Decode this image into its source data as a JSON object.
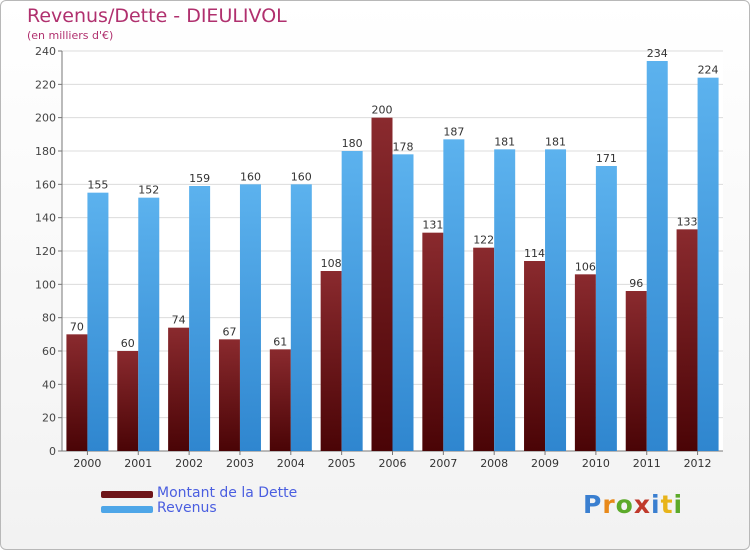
{
  "chart_data": {
    "type": "bar",
    "title": "Revenus/Dette - DIEULIVOL",
    "subtitle": "(en milliers d'€)",
    "categories": [
      "2000",
      "2001",
      "2002",
      "2003",
      "2004",
      "2005",
      "2006",
      "2007",
      "2008",
      "2009",
      "2010",
      "2011",
      "2012"
    ],
    "series": [
      {
        "name": "Montant de la Dette",
        "values": [
          70,
          60,
          74,
          67,
          61,
          108,
          200,
          131,
          122,
          114,
          106,
          96,
          133
        ],
        "color": "#6e1418"
      },
      {
        "name": "Revenus",
        "values": [
          155,
          152,
          159,
          160,
          160,
          180,
          178,
          187,
          181,
          181,
          171,
          234,
          224
        ],
        "color": "#4ea6e8"
      }
    ],
    "ylim": [
      0,
      240
    ],
    "yticks": [
      0,
      20,
      40,
      60,
      80,
      100,
      120,
      140,
      160,
      180,
      200,
      220,
      240
    ],
    "grid": true,
    "legend_position": "bottom-left"
  },
  "logo": {
    "letters": [
      {
        "char": "P",
        "color": "#3a7fd0"
      },
      {
        "char": "r",
        "color": "#e8891a"
      },
      {
        "char": "o",
        "color": "#5caa2a"
      },
      {
        "char": "x",
        "color": "#c0392b"
      },
      {
        "char": "i",
        "color": "#3a7fd0"
      },
      {
        "char": "t",
        "color": "#e8b41a"
      },
      {
        "char": "i",
        "color": "#5caa2a"
      }
    ]
  }
}
